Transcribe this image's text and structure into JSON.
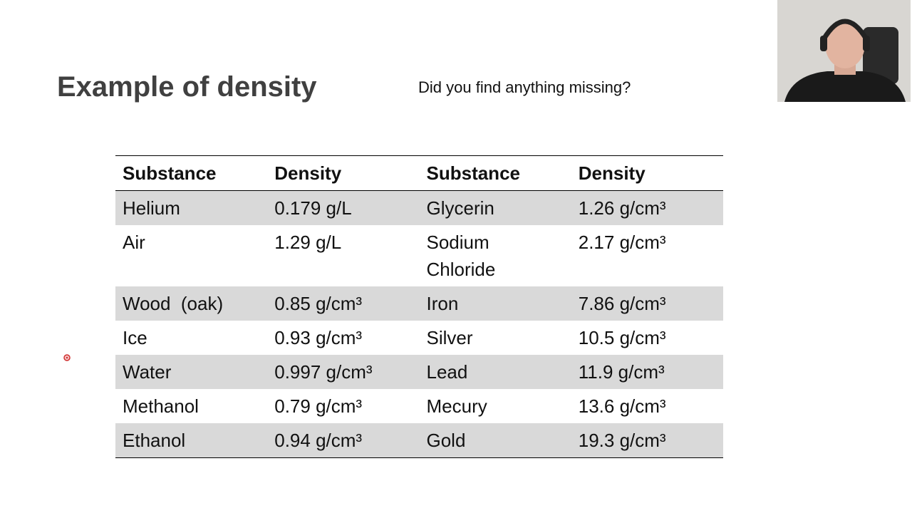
{
  "header": {
    "title": "Example of density",
    "subtitle": "Did you find anything missing?"
  },
  "table": {
    "header": [
      "Substance",
      "Density",
      "Substance",
      "Density"
    ],
    "rows": [
      [
        "Helium",
        "0.179 g/L",
        "Glycerin",
        "1.26 g/cm³"
      ],
      [
        "Air",
        "1.29 g/L",
        "Sodium Chloride",
        "2.17 g/cm³"
      ],
      [
        "Wood  (oak)",
        "0.85 g/cm³",
        "Iron",
        "7.86 g/cm³"
      ],
      [
        "Ice",
        "0.93 g/cm³",
        "Silver",
        "10.5 g/cm³"
      ],
      [
        "Water",
        "0.997 g/cm³",
        "Lead",
        "11.9 g/cm³"
      ],
      [
        "Methanol",
        "0.79 g/cm³",
        "Mecury",
        "13.6 g/cm³"
      ],
      [
        "Ethanol",
        "0.94 g/cm³",
        "Gold",
        "19.3 g/cm³"
      ]
    ]
  }
}
